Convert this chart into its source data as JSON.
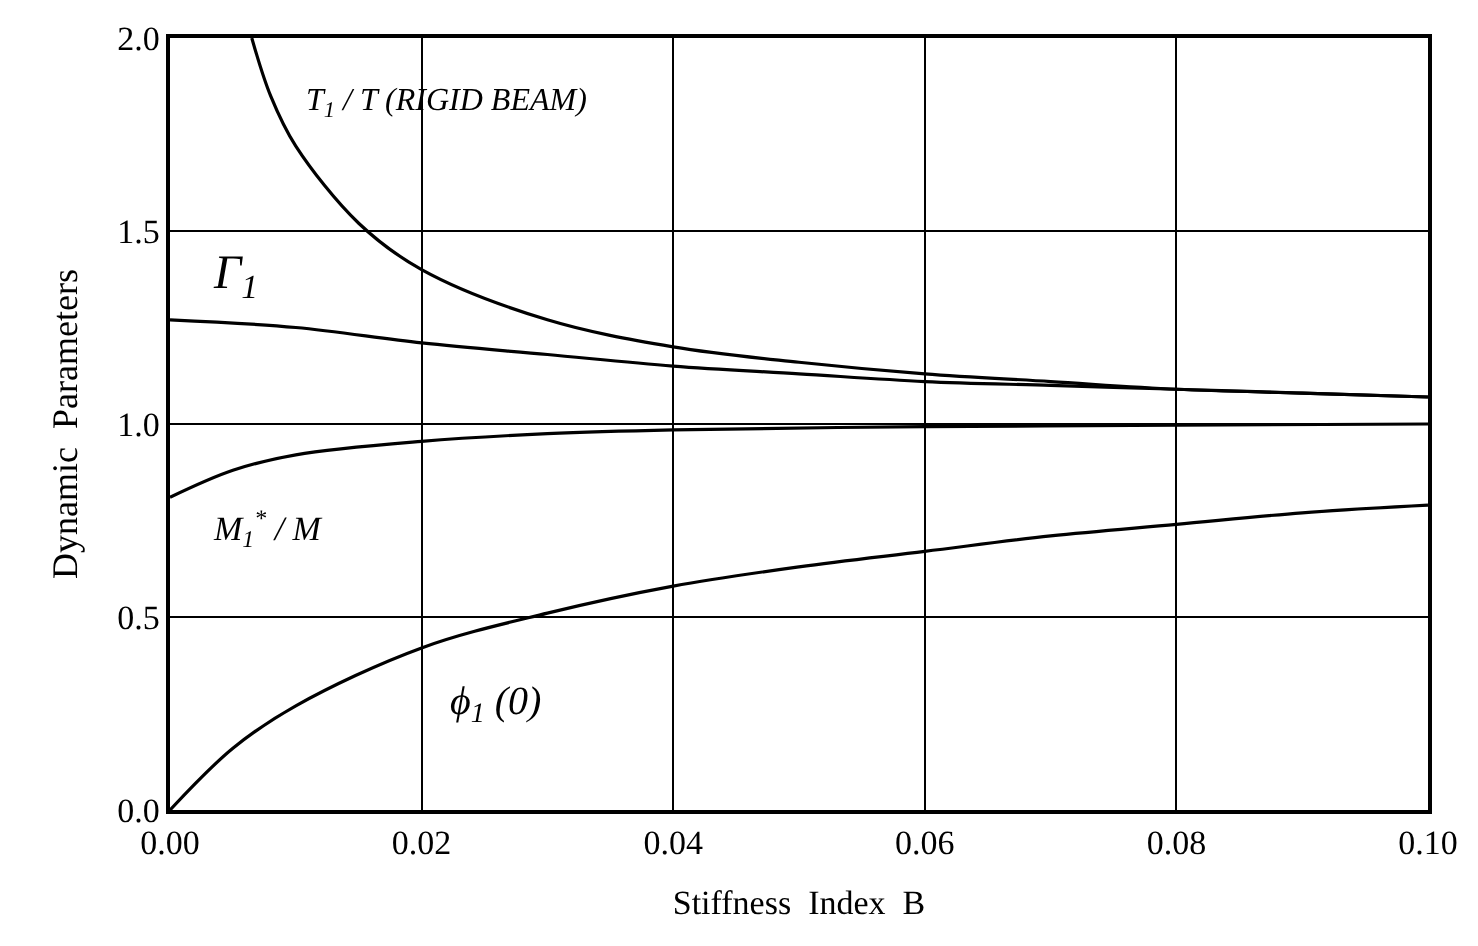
{
  "chart_data": {
    "type": "line",
    "xlabel": "Stiffness  Index  B",
    "ylabel": "Dynamic  Parameters",
    "xlim": [
      0,
      0.1
    ],
    "xticks": [
      {
        "value": 0,
        "label": "0.00"
      },
      {
        "value": 0.02,
        "label": "0.02"
      },
      {
        "value": 0.04,
        "label": "0.04"
      },
      {
        "value": 0.06,
        "label": "0.06"
      },
      {
        "value": 0.08,
        "label": "0.08"
      },
      {
        "value": 0.1,
        "label": "0.10"
      }
    ],
    "ylim": [
      0,
      2
    ],
    "yticks": [
      {
        "value": 0,
        "label": "0.0"
      },
      {
        "value": 0.5,
        "label": "0.5"
      },
      {
        "value": 1,
        "label": "1.0"
      },
      {
        "value": 1.5,
        "label": "1.5"
      },
      {
        "value": 2,
        "label": "2.0"
      }
    ],
    "grid": true,
    "legend": false,
    "marker": "none",
    "line_style": "solid",
    "series": [
      {
        "name": "T$_{1}$ / T (RIGID BEAM)",
        "color": "#000000",
        "x": [
          0.0065,
          0.008,
          0.01,
          0.015,
          0.02,
          0.03,
          0.04,
          0.05,
          0.06,
          0.07,
          0.08,
          0.09,
          0.1
        ],
        "values": [
          2.0,
          1.85,
          1.72,
          1.52,
          1.4,
          1.27,
          1.2,
          1.16,
          1.13,
          1.11,
          1.09,
          1.08,
          1.07
        ]
      },
      {
        "name": "Γ$_{1}$",
        "color": "#000000",
        "x": [
          0,
          0.01,
          0.02,
          0.03,
          0.04,
          0.05,
          0.06,
          0.07,
          0.08,
          0.09,
          0.1
        ],
        "values": [
          1.27,
          1.25,
          1.21,
          1.18,
          1.15,
          1.13,
          1.11,
          1.1,
          1.09,
          1.08,
          1.07
        ]
      },
      {
        "name": "M$_{1}$$^{*}$ / M",
        "color": "#000000",
        "x": [
          0,
          0.005,
          0.01,
          0.02,
          0.03,
          0.04,
          0.06,
          0.08,
          0.1
        ],
        "values": [
          0.81,
          0.88,
          0.92,
          0.955,
          0.975,
          0.985,
          0.993,
          0.997,
          1.0
        ]
      },
      {
        "name": "ϕ$_{1}$ (0)",
        "color": "#000000",
        "x": [
          0,
          0.005,
          0.01,
          0.02,
          0.03,
          0.04,
          0.05,
          0.06,
          0.07,
          0.08,
          0.09,
          0.1
        ],
        "values": [
          0,
          0.16,
          0.27,
          0.42,
          0.51,
          0.58,
          0.63,
          0.67,
          0.71,
          0.74,
          0.77,
          0.79
        ]
      }
    ]
  }
}
